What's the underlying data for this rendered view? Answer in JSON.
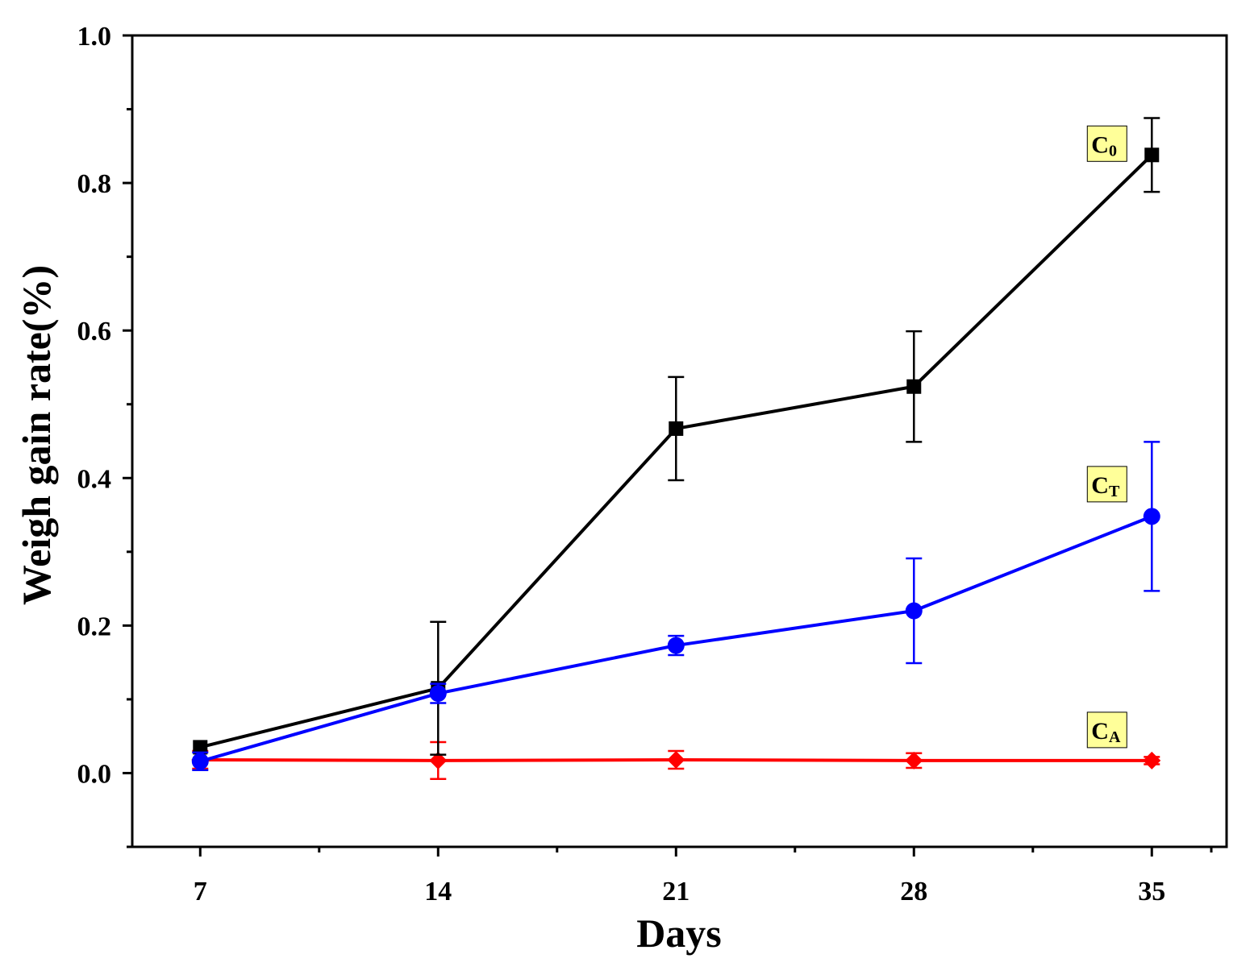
{
  "chart_data": {
    "type": "line",
    "title": "",
    "xlabel": "Days",
    "ylabel": "Weigh gain rate(%)",
    "x": [
      7,
      14,
      21,
      28,
      35
    ],
    "x_tick_labels": [
      "7",
      "14",
      "21",
      "28",
      "35"
    ],
    "xlim": [
      5,
      37.2
    ],
    "ylim": [
      -0.1,
      1.0
    ],
    "y_ticks": [
      0.0,
      0.2,
      0.4,
      0.6,
      0.8,
      1.0
    ],
    "y_tick_labels": [
      "0.0",
      "0.2",
      "0.4",
      "0.6",
      "0.8",
      "1.0"
    ],
    "y_minor_ticks": [
      -0.1,
      0.1,
      0.3,
      0.5,
      0.7,
      0.9
    ],
    "grid": false,
    "series": [
      {
        "name": "C0",
        "label_main": "C",
        "label_sub": "0",
        "color": "#000000",
        "marker": "square",
        "values": [
          0.035,
          0.115,
          0.467,
          0.524,
          0.838
        ],
        "errors": [
          0.0,
          0.09,
          0.07,
          0.075,
          0.05
        ]
      },
      {
        "name": "CT",
        "label_main": "C",
        "label_sub": "T",
        "color": "#0000ff",
        "marker": "circle",
        "values": [
          0.016,
          0.108,
          0.173,
          0.22,
          0.348
        ],
        "errors": [
          0.012,
          0.013,
          0.013,
          0.071,
          0.101
        ]
      },
      {
        "name": "CA",
        "label_main": "C",
        "label_sub": "A",
        "color": "#ff0000",
        "marker": "diamond",
        "values": [
          0.018,
          0.017,
          0.018,
          0.017,
          0.017
        ],
        "errors": [
          0.012,
          0.025,
          0.012,
          0.01,
          0.005
        ]
      }
    ],
    "label_box_color": "#ffff99"
  }
}
